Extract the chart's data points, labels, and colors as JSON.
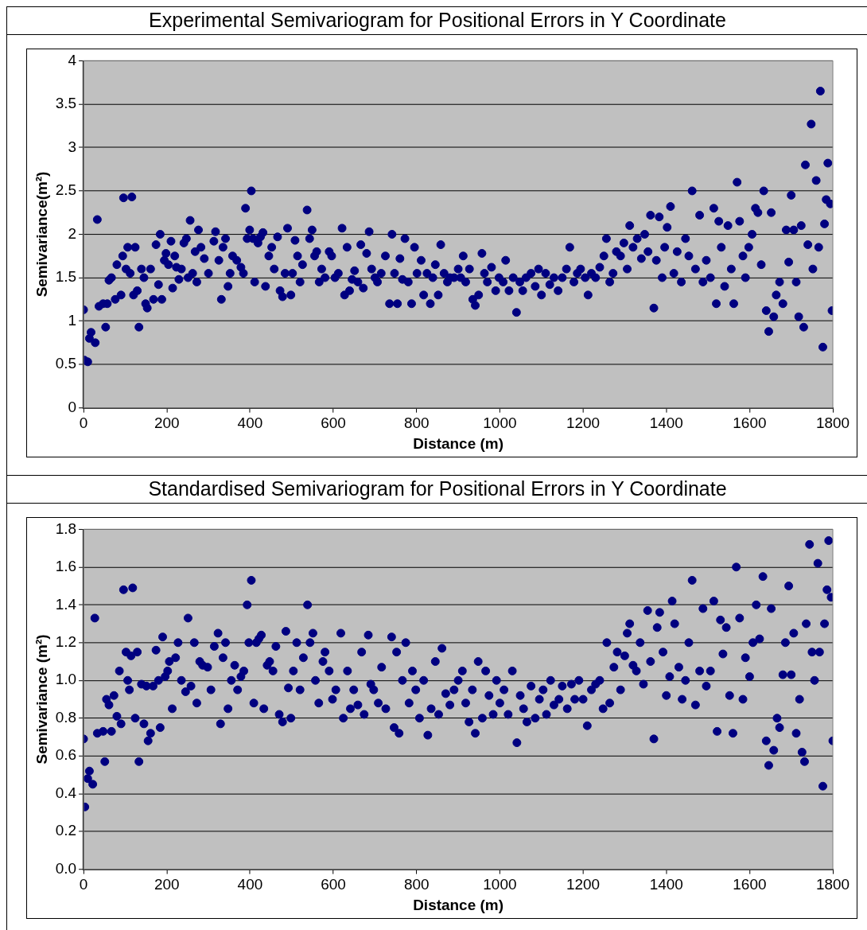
{
  "chart_data": [
    {
      "type": "scatter",
      "title": "Experimental Semivariogram for Positional Errors in Y Coordinate",
      "xlabel": "Distance (m)",
      "ylabel": "Semivariance(m²)",
      "marker": "circle",
      "grid": "y",
      "legend": false,
      "series": [
        {
          "color": "#000080",
          "x": [
            0,
            2,
            10,
            14,
            18,
            28,
            33,
            37,
            47,
            53,
            57,
            61,
            67,
            76,
            80,
            90,
            94,
            96,
            102,
            106,
            112,
            116,
            120,
            124,
            129,
            133,
            139,
            145,
            149,
            153,
            161,
            168,
            174,
            180,
            184,
            188,
            194,
            198,
            204,
            210,
            214,
            219,
            223,
            229,
            235,
            241,
            247,
            251,
            256,
            262,
            268,
            272,
            276,
            282,
            290,
            300,
            313,
            317,
            325,
            331,
            335,
            341,
            347,
            352,
            358,
            368,
            378,
            384,
            389,
            393,
            399,
            403,
            407,
            411,
            419,
            425,
            431,
            437,
            445,
            452,
            458,
            466,
            472,
            478,
            484,
            490,
            498,
            502,
            508,
            514,
            520,
            526,
            537,
            543,
            549,
            555,
            560,
            566,
            572,
            580,
            590,
            596,
            604,
            612,
            621,
            627,
            633,
            639,
            645,
            651,
            659,
            666,
            672,
            680,
            686,
            692,
            700,
            706,
            715,
            725,
            735,
            741,
            747,
            754,
            760,
            766,
            772,
            780,
            788,
            795,
            801,
            811,
            817,
            825,
            833,
            839,
            845,
            852,
            858,
            866,
            874,
            880,
            890,
            900,
            906,
            912,
            918,
            927,
            935,
            941,
            949,
            957,
            963,
            970,
            980,
            990,
            998,
            1008,
            1014,
            1022,
            1032,
            1040,
            1048,
            1055,
            1063,
            1075,
            1085,
            1093,
            1100,
            1110,
            1120,
            1130,
            1140,
            1150,
            1160,
            1168,
            1178,
            1186,
            1194,
            1205,
            1212,
            1220,
            1230,
            1240,
            1250,
            1256,
            1264,
            1272,
            1280,
            1290,
            1298,
            1306,
            1312,
            1320,
            1330,
            1340,
            1348,
            1356,
            1362,
            1370,
            1376,
            1383,
            1390,
            1396,
            1402,
            1410,
            1418,
            1426,
            1436,
            1446,
            1454,
            1462,
            1470,
            1480,
            1488,
            1496,
            1506,
            1514,
            1520,
            1526,
            1532,
            1540,
            1548,
            1556,
            1562,
            1570,
            1576,
            1584,
            1590,
            1598,
            1606,
            1614,
            1620,
            1628,
            1634,
            1640,
            1646,
            1652,
            1658,
            1664,
            1672,
            1680,
            1688,
            1694,
            1700,
            1706,
            1712,
            1718,
            1724,
            1730,
            1734,
            1740,
            1748,
            1752,
            1760,
            1766,
            1770,
            1776,
            1780,
            1784,
            1788,
            1794,
            1798
          ],
          "values": [
            1.13,
            0.55,
            0.53,
            0.8,
            0.87,
            0.75,
            2.17,
            1.17,
            1.2,
            0.93,
            1.2,
            1.47,
            1.5,
            1.25,
            1.65,
            1.3,
            1.75,
            2.42,
            1.6,
            1.85,
            1.55,
            2.43,
            1.3,
            1.85,
            1.35,
            0.93,
            1.6,
            1.5,
            1.2,
            1.15,
            1.6,
            1.25,
            1.88,
            1.42,
            2.0,
            1.25,
            1.7,
            1.78,
            1.65,
            1.92,
            1.38,
            1.75,
            1.62,
            1.48,
            1.6,
            1.9,
            1.95,
            1.5,
            2.16,
            1.55,
            1.8,
            1.45,
            2.05,
            1.85,
            1.72,
            1.55,
            1.92,
            2.03,
            1.7,
            1.25,
            1.85,
            1.95,
            1.4,
            1.55,
            1.75,
            1.7,
            1.62,
            1.55,
            2.3,
            1.95,
            2.05,
            2.5,
            1.95,
            1.45,
            1.9,
            1.97,
            2.02,
            1.4,
            1.75,
            1.85,
            1.6,
            1.97,
            1.35,
            1.28,
            1.55,
            2.07,
            1.3,
            1.55,
            1.93,
            1.75,
            1.45,
            1.65,
            2.28,
            1.95,
            2.05,
            1.75,
            1.8,
            1.45,
            1.6,
            1.5,
            1.8,
            1.75,
            1.5,
            1.55,
            2.07,
            1.3,
            1.85,
            1.35,
            1.48,
            1.58,
            1.45,
            1.88,
            1.38,
            1.78,
            2.03,
            1.6,
            1.5,
            1.45,
            1.55,
            1.75,
            1.2,
            2.0,
            1.55,
            1.2,
            1.72,
            1.48,
            1.95,
            1.45,
            1.2,
            1.85,
            1.55,
            1.7,
            1.3,
            1.55,
            1.2,
            1.5,
            1.65,
            1.3,
            1.88,
            1.55,
            1.45,
            1.5,
            1.5,
            1.6,
            1.5,
            1.75,
            1.45,
            1.6,
            1.25,
            1.18,
            1.3,
            1.78,
            1.55,
            1.45,
            1.62,
            1.35,
            1.5,
            1.45,
            1.7,
            1.35,
            1.5,
            1.1,
            1.45,
            1.35,
            1.5,
            1.55,
            1.4,
            1.6,
            1.3,
            1.55,
            1.42,
            1.5,
            1.35,
            1.5,
            1.6,
            1.85,
            1.45,
            1.55,
            1.6,
            1.5,
            1.3,
            1.55,
            1.5,
            1.62,
            1.75,
            1.95,
            1.45,
            1.55,
            1.8,
            1.75,
            1.9,
            1.6,
            2.1,
            1.85,
            1.95,
            1.72,
            2.0,
            1.8,
            2.22,
            1.15,
            1.7,
            2.2,
            1.5,
            1.85,
            2.08,
            2.32,
            1.55,
            1.8,
            1.45,
            1.95,
            1.75,
            2.5,
            1.6,
            2.22,
            1.45,
            1.7,
            1.5,
            2.3,
            1.2,
            2.15,
            1.85,
            1.4,
            2.1,
            1.6,
            1.2,
            2.6,
            2.15,
            1.75,
            1.5,
            1.85,
            2.0,
            2.3,
            2.25,
            1.65,
            2.5,
            1.12,
            0.88,
            2.25,
            1.05,
            1.3,
            1.45,
            1.2,
            2.05,
            1.68,
            2.45,
            2.05,
            1.45,
            1.05,
            2.1,
            0.93,
            2.8,
            1.88,
            3.27,
            1.6,
            2.62,
            1.85,
            3.65,
            0.7,
            2.12,
            2.4,
            2.82,
            2.35,
            1.12
          ]
        }
      ],
      "xlim": [
        0,
        1800
      ],
      "xticks": [
        0,
        200,
        400,
        600,
        800,
        1000,
        1200,
        1400,
        1600,
        1800
      ],
      "ylim": [
        0,
        4
      ],
      "yticks": [
        0,
        0.5,
        1,
        1.5,
        2,
        2.5,
        3,
        3.5,
        4
      ]
    },
    {
      "type": "scatter",
      "title": "Standardised Semivariogram for Positional Errors in Y Coordinate",
      "xlabel": "Distance (m)",
      "ylabel": "Semivariance (m²)",
      "marker": "circle",
      "grid": "y",
      "legend": false,
      "series": [
        {
          "color": "#000080",
          "x": [
            0,
            3,
            10,
            14,
            22,
            27,
            33,
            47,
            51,
            55,
            61,
            67,
            73,
            80,
            86,
            90,
            96,
            102,
            106,
            110,
            114,
            118,
            124,
            129,
            133,
            139,
            145,
            151,
            155,
            161,
            167,
            174,
            180,
            184,
            190,
            196,
            202,
            206,
            213,
            221,
            227,
            235,
            245,
            251,
            258,
            266,
            272,
            279,
            286,
            298,
            306,
            314,
            323,
            329,
            335,
            341,
            347,
            355,
            363,
            370,
            378,
            385,
            393,
            397,
            403,
            409,
            415,
            421,
            427,
            433,
            441,
            447,
            455,
            462,
            470,
            478,
            486,
            492,
            498,
            504,
            512,
            520,
            528,
            538,
            544,
            551,
            557,
            565,
            575,
            580,
            590,
            598,
            606,
            618,
            624,
            634,
            641,
            649,
            659,
            668,
            674,
            684,
            690,
            697,
            708,
            716,
            726,
            740,
            746,
            752,
            758,
            766,
            774,
            782,
            790,
            798,
            807,
            817,
            827,
            835,
            845,
            853,
            861,
            870,
            880,
            890,
            900,
            910,
            918,
            926,
            934,
            941,
            948,
            958,
            966,
            974,
            984,
            992,
            1000,
            1010,
            1020,
            1030,
            1041,
            1049,
            1057,
            1065,
            1075,
            1085,
            1095,
            1104,
            1112,
            1122,
            1130,
            1142,
            1150,
            1162,
            1172,
            1180,
            1190,
            1200,
            1210,
            1220,
            1230,
            1240,
            1248,
            1257,
            1264,
            1274,
            1282,
            1290,
            1300,
            1306,
            1312,
            1320,
            1328,
            1337,
            1345,
            1355,
            1362,
            1370,
            1378,
            1384,
            1392,
            1400,
            1408,
            1414,
            1420,
            1430,
            1438,
            1446,
            1454,
            1462,
            1470,
            1480,
            1488,
            1496,
            1506,
            1514,
            1522,
            1530,
            1536,
            1544,
            1552,
            1560,
            1568,
            1576,
            1584,
            1590,
            1600,
            1608,
            1616,
            1624,
            1632,
            1640,
            1646,
            1652,
            1658,
            1666,
            1672,
            1680,
            1686,
            1694,
            1700,
            1706,
            1712,
            1720,
            1726,
            1732,
            1736,
            1744,
            1750,
            1756,
            1764,
            1768,
            1776,
            1780,
            1786,
            1790,
            1796,
            1800
          ],
          "values": [
            0.69,
            0.33,
            0.48,
            0.52,
            0.45,
            1.33,
            0.72,
            0.73,
            0.57,
            0.9,
            0.87,
            0.73,
            0.92,
            0.81,
            1.05,
            0.77,
            1.48,
            1.15,
            1.0,
            0.95,
            1.13,
            1.49,
            0.8,
            1.15,
            0.57,
            0.98,
            0.77,
            0.97,
            0.68,
            0.72,
            0.97,
            1.16,
            1.0,
            0.75,
            1.23,
            1.02,
            1.05,
            1.1,
            0.85,
            1.12,
            1.2,
            1.0,
            0.94,
            1.33,
            0.97,
            1.2,
            0.88,
            1.1,
            1.08,
            1.07,
            0.95,
            1.18,
            1.25,
            0.77,
            1.12,
            1.2,
            0.85,
            1.0,
            1.08,
            0.95,
            1.02,
            1.05,
            1.4,
            1.2,
            1.53,
            0.88,
            1.2,
            1.22,
            1.24,
            0.85,
            1.08,
            1.1,
            1.05,
            1.18,
            0.82,
            0.78,
            1.26,
            0.96,
            0.8,
            1.05,
            1.2,
            0.95,
            1.12,
            1.4,
            1.2,
            1.25,
            1.0,
            0.88,
            1.1,
            1.15,
            1.05,
            0.9,
            0.95,
            1.25,
            0.8,
            1.05,
            0.85,
            0.95,
            0.87,
            1.15,
            0.82,
            1.24,
            0.98,
            0.95,
            0.88,
            1.07,
            0.85,
            1.23,
            0.75,
            1.15,
            0.72,
            1.0,
            1.2,
            0.88,
            1.05,
            0.95,
            0.8,
            1.0,
            0.71,
            0.85,
            1.1,
            0.82,
            1.17,
            0.93,
            0.87,
            0.95,
            1.0,
            1.05,
            0.88,
            0.78,
            0.95,
            0.72,
            1.1,
            0.8,
            1.05,
            0.92,
            0.82,
            1.0,
            0.88,
            0.95,
            0.82,
            1.05,
            0.67,
            0.92,
            0.85,
            0.78,
            0.97,
            0.8,
            0.9,
            0.95,
            0.82,
            1.0,
            0.87,
            0.9,
            0.97,
            0.85,
            0.98,
            0.9,
            1.0,
            0.9,
            0.76,
            0.95,
            0.98,
            1.0,
            0.85,
            1.2,
            0.88,
            1.07,
            1.15,
            0.95,
            1.13,
            1.25,
            1.3,
            1.08,
            1.05,
            1.2,
            0.98,
            1.37,
            1.1,
            0.69,
            1.28,
            1.36,
            1.15,
            0.92,
            1.02,
            1.42,
            1.3,
            1.07,
            0.9,
            1.0,
            1.2,
            1.53,
            0.87,
            1.05,
            1.38,
            0.97,
            1.05,
            1.42,
            0.73,
            1.32,
            1.14,
            1.28,
            0.92,
            0.72,
            1.6,
            1.33,
            0.9,
            1.12,
            1.02,
            1.2,
            1.4,
            1.22,
            1.55,
            0.68,
            0.55,
            1.38,
            0.63,
            0.8,
            0.75,
            1.03,
            1.2,
            1.5,
            1.03,
            1.25,
            0.72,
            0.9,
            0.62,
            0.57,
            1.3,
            1.72,
            1.15,
            1.0,
            1.62,
            1.15,
            0.44,
            1.3,
            1.48,
            1.74,
            1.44,
            0.68
          ]
        }
      ],
      "xlim": [
        0,
        1800
      ],
      "xticks": [
        0,
        200,
        400,
        600,
        800,
        1000,
        1200,
        1400,
        1600,
        1800
      ],
      "ylim": [
        0,
        1.8
      ],
      "yticks": [
        {
          "value": 0,
          "label": "0.0"
        },
        {
          "value": 0.2,
          "label": "0.2"
        },
        {
          "value": 0.4,
          "label": "0.4"
        },
        {
          "value": 0.6,
          "label": "0.6"
        },
        {
          "value": 0.8,
          "label": "0.8"
        },
        {
          "value": 1,
          "label": "1.0"
        },
        {
          "value": 1.2,
          "label": "1.2"
        },
        {
          "value": 1.4,
          "label": "1.4"
        },
        {
          "value": 1.6,
          "label": "1.6"
        },
        {
          "value": 1.8,
          "label": "1.8"
        }
      ]
    }
  ]
}
